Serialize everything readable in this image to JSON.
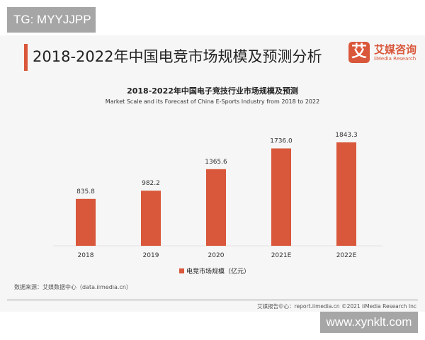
{
  "watermark_top": "TG: MYYJJPP",
  "watermark_bottom": "www.xynklt.com",
  "slide_title": "2018-2022年中国电竞市场规模及预测分析",
  "logo": {
    "mark": "艾",
    "cn": "艾媒咨询",
    "en": "iiMedia Research"
  },
  "source": "数据来源：艾媒数据中心（data.iimedia.cn）",
  "footer": "艾媒报告中心：report.iimedia.cn  ©2021  iiMedia Research Inc",
  "colors": {
    "bar": "#d9573a",
    "accent": "#d9573a"
  },
  "chart_data": {
    "type": "bar",
    "title": "2018-2022年中国电子竞技行业市场规模及预测",
    "subtitle": "Market Scale and its Forecast of China E-Sports Industry from 2018 to 2022",
    "categories": [
      "2018",
      "2019",
      "2020",
      "2021E",
      "2022E"
    ],
    "series": [
      {
        "name": "电竞市场规模（亿元）",
        "values": [
          835.8,
          982.2,
          1365.6,
          1736.0,
          1843.3
        ]
      }
    ],
    "value_labels": [
      "835.8",
      "982.2",
      "1365.6",
      "1736.0",
      "1843.3"
    ],
    "ylim": [
      0,
      1843.3
    ],
    "grid": false,
    "legend": "bottom"
  }
}
